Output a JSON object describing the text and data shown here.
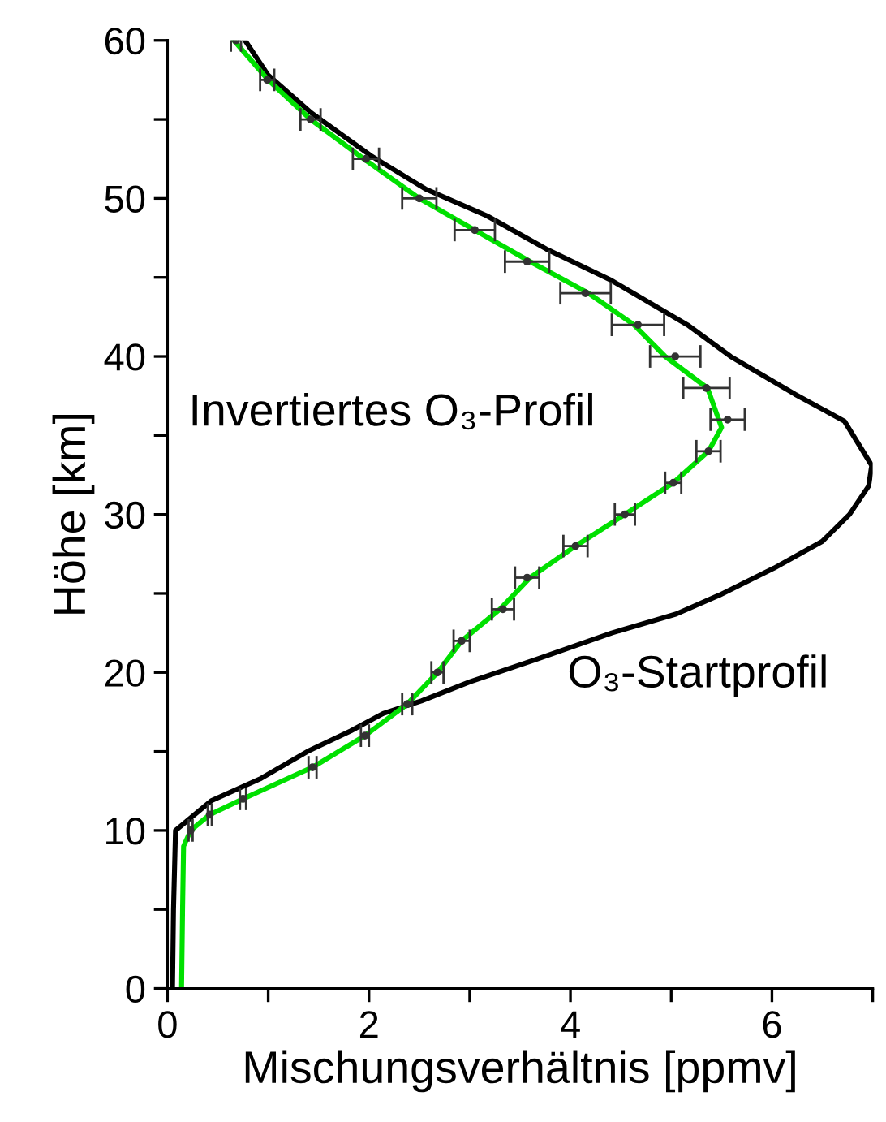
{
  "chart_data": {
    "type": "line",
    "xlabel": "Mischungsverhältnis [ppmv]",
    "ylabel": "Höhe [km]",
    "xlim": [
      0,
      7
    ],
    "ylim": [
      0,
      60
    ],
    "xticks": [
      0,
      {
        "value": 1,
        "label": null
      },
      2,
      {
        "value": 3,
        "label": null
      },
      4,
      {
        "value": 5,
        "label": null
      },
      6,
      {
        "value": 7,
        "label": null
      }
    ],
    "yticks": [
      0,
      {
        "value": 5,
        "label": null
      },
      10,
      {
        "value": 15,
        "label": null
      },
      20,
      {
        "value": 25,
        "label": null
      },
      30,
      {
        "value": 35,
        "label": null
      },
      40,
      {
        "value": 45,
        "label": null
      },
      50,
      {
        "value": 55,
        "label": null
      },
      60
    ],
    "grid": false,
    "legend": false,
    "series": [
      {
        "color": "#000000",
        "line_style": "solid",
        "marker": "none",
        "x": [
          0.05,
          0.06,
          0.08,
          0.25,
          0.44,
          0.93,
          1.39,
          1.82,
          2.14,
          2.52,
          3.0,
          3.65,
          4.41,
          5.05,
          5.48,
          6.02,
          6.5,
          6.77,
          6.96,
          6.99,
          6.72,
          6.23,
          5.59,
          5.16,
          4.41,
          3.76,
          3.17,
          2.56,
          2.02,
          1.43,
          1.0,
          0.77
        ],
        "values": [
          0,
          5,
          10,
          10.9,
          11.9,
          13.3,
          15.0,
          16.3,
          17.4,
          18.2,
          19.4,
          20.8,
          22.5,
          23.7,
          24.9,
          26.6,
          28.3,
          30.0,
          31.8,
          33.1,
          35.9,
          37.6,
          40.0,
          42.0,
          44.8,
          46.8,
          48.9,
          50.6,
          52.7,
          55.4,
          57.8,
          60
        ]
      },
      {
        "color": "#00e000",
        "line_style": "solid",
        "marker": "none",
        "x": [
          0.14,
          0.15,
          0.16,
          0.23,
          0.42,
          0.75,
          1.44,
          1.96,
          2.38,
          2.68,
          2.92,
          3.3,
          3.6,
          4.05,
          4.54,
          5.02,
          5.37,
          5.5,
          5.36,
          4.94,
          4.63,
          4.18,
          3.6,
          3.05,
          2.5,
          1.95,
          1.42,
          1.0,
          0.66
        ],
        "values": [
          0,
          5,
          9,
          10,
          11,
          12,
          14,
          16,
          18,
          20,
          22,
          24,
          26,
          28,
          30,
          32,
          34,
          35.5,
          38,
          40,
          42,
          44,
          46,
          48,
          50,
          52.5,
          55,
          57.5,
          60
        ]
      },
      {
        "type": "scatter",
        "color": "#333333",
        "marker": "circle",
        "x": [
          0.23,
          0.42,
          0.75,
          1.44,
          1.96,
          2.38,
          2.68,
          2.92,
          3.33,
          3.57,
          4.05,
          4.54,
          5.02,
          5.37,
          5.56,
          5.35,
          5.04,
          4.67,
          4.15,
          3.57,
          3.05,
          2.5,
          1.97,
          1.42,
          0.99,
          0.68
        ],
        "values": [
          10,
          11,
          12,
          14,
          16,
          18,
          20,
          22,
          24,
          26,
          28,
          30,
          32,
          34,
          36,
          38,
          40,
          42,
          44,
          46,
          48,
          50,
          52.5,
          55,
          57.5,
          60
        ],
        "xerrors": [
          0.02,
          0.02,
          0.03,
          0.04,
          0.04,
          0.05,
          0.06,
          0.08,
          0.11,
          0.12,
          0.12,
          0.1,
          0.08,
          0.12,
          0.17,
          0.23,
          0.25,
          0.26,
          0.25,
          0.22,
          0.2,
          0.17,
          0.13,
          0.1,
          0.07,
          0.05
        ]
      }
    ],
    "annotations": [
      "Invertiertes O₃-Profil",
      "O₃-Startprofil"
    ]
  }
}
